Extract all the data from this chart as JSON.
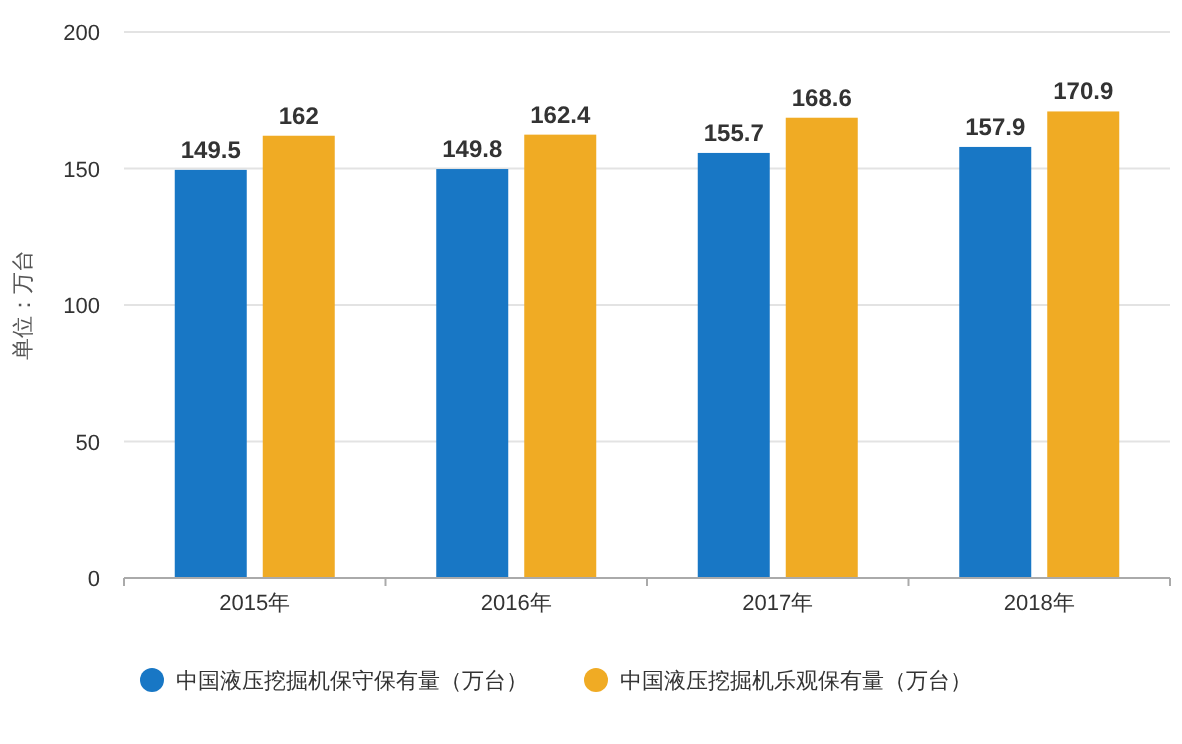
{
  "chart_data": {
    "type": "bar",
    "ylabel": "单位：万台",
    "categories": [
      "2015年",
      "2016年",
      "2017年",
      "2018年"
    ],
    "series": [
      {
        "name": "中国液压挖掘机保守保有量（万台）",
        "color": "#1877c5",
        "values": [
          149.5,
          149.8,
          155.7,
          157.9
        ]
      },
      {
        "name": "中国液压挖掘机乐观保有量（万台）",
        "color": "#f0ab24",
        "values": [
          162,
          162.4,
          168.6,
          170.9
        ]
      }
    ],
    "ylim": [
      0,
      200
    ],
    "yticks": [
      0,
      50,
      100,
      150,
      200
    ],
    "grid": "y",
    "legend": "bottom",
    "data_labels": true
  }
}
